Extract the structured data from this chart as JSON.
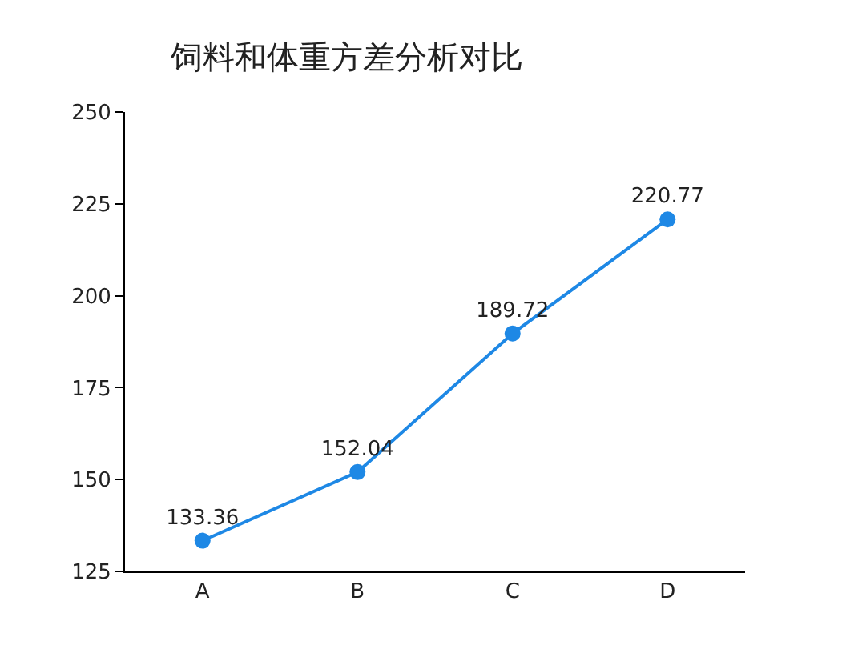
{
  "chart_data": {
    "type": "line",
    "title": "饲料和体重方差分析对比",
    "categories": [
      "A",
      "B",
      "C",
      "D"
    ],
    "series": [
      {
        "color": "#1e88e5",
        "values": [
          133.36,
          152.04,
          189.72,
          220.77
        ]
      }
    ],
    "ylim": [
      125,
      250
    ],
    "yticks": [
      125,
      150,
      175,
      200,
      225,
      250
    ],
    "data_labels": true,
    "marker": "circle",
    "line_style": "solid",
    "legend": false
  }
}
